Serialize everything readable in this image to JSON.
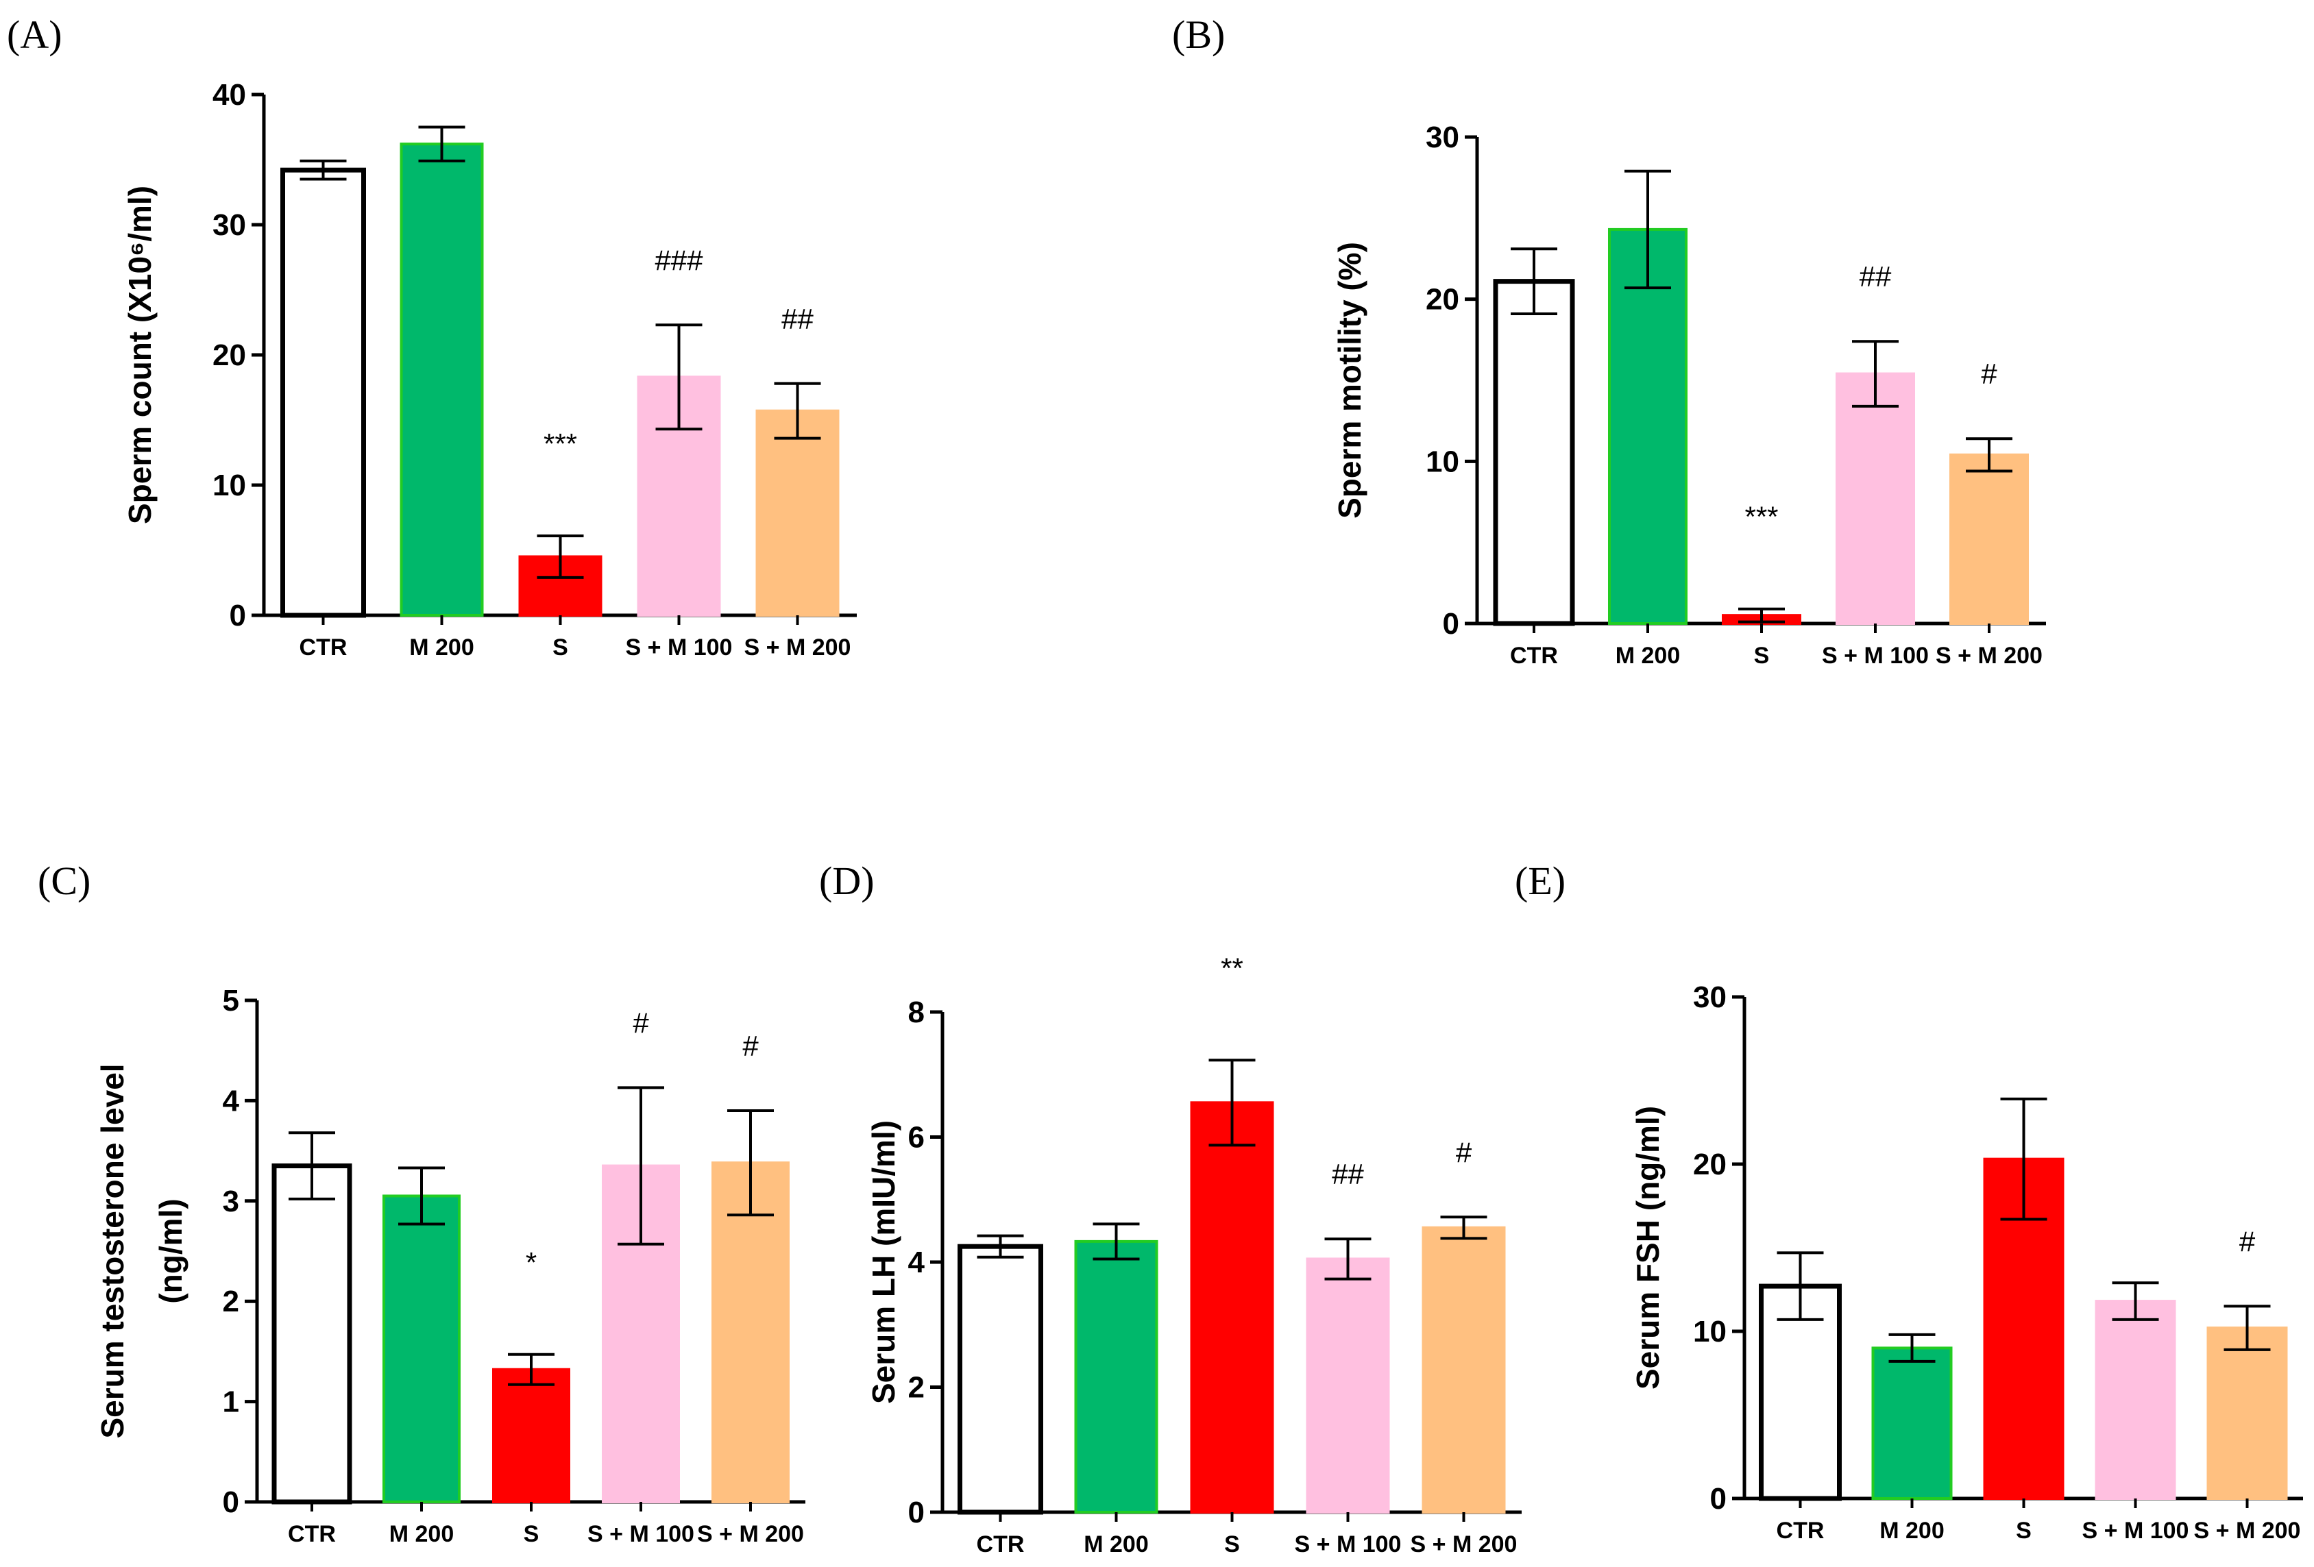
{
  "colors": {
    "CTR": "#ffffff",
    "M 200": "#00b86b",
    "S": "#ff0000",
    "S + M 100": "#ffc0e0",
    "S + M 200": "#ffc080"
  },
  "chart_data": [
    {
      "type": "bar",
      "panel": "(A)",
      "ylabel": "Sperm count (X10⁶/ml)",
      "ylim": [
        0,
        40
      ],
      "yticks": [
        "0",
        "10",
        "20",
        "30",
        "40"
      ],
      "categories": [
        "CTR",
        "M 200",
        "S",
        "S + M 100",
        "S + M 200"
      ],
      "values": [
        34.2,
        36.2,
        4.5,
        18.3,
        15.7
      ],
      "errors": [
        0.7,
        1.3,
        1.6,
        4.0,
        2.1
      ],
      "annotations": [
        "",
        "",
        "***",
        "###",
        "##"
      ]
    },
    {
      "type": "bar",
      "panel": "(B)",
      "ylabel": "Sperm motility (%)",
      "ylim": [
        0,
        30
      ],
      "yticks": [
        "0",
        "10",
        "20",
        "30"
      ],
      "categories": [
        "CTR",
        "M 200",
        "S",
        "S + M 100",
        "S + M 200"
      ],
      "values": [
        21.1,
        24.3,
        0.5,
        15.4,
        10.4
      ],
      "errors": [
        2.0,
        3.6,
        0.4,
        2.0,
        1.0
      ],
      "annotations": [
        "",
        "",
        "***",
        "##",
        "#"
      ]
    },
    {
      "type": "bar",
      "panel": "(C)",
      "ylabel": "Serum testosterone level (ng/ml)",
      "ylim": [
        0,
        5
      ],
      "yticks": [
        "0",
        "1",
        "2",
        "3",
        "4",
        "5"
      ],
      "categories": [
        "CTR",
        "M 200",
        "S",
        "S + M 100",
        "S + M 200"
      ],
      "values": [
        3.35,
        3.05,
        1.32,
        3.35,
        3.38
      ],
      "errors": [
        0.33,
        0.28,
        0.15,
        0.78,
        0.52
      ],
      "annotations": [
        "",
        "",
        "*",
        "#",
        "#"
      ]
    },
    {
      "type": "bar",
      "panel": "(D)",
      "ylabel": "Serum LH (mIU/ml)",
      "ylim": [
        0,
        8
      ],
      "yticks": [
        "0",
        "2",
        "4",
        "6",
        "8"
      ],
      "categories": [
        "CTR",
        "M 200",
        "S",
        "S + M 100",
        "S + M 200"
      ],
      "values": [
        4.25,
        4.33,
        6.55,
        4.05,
        4.55
      ],
      "errors": [
        0.17,
        0.28,
        0.68,
        0.32,
        0.17
      ],
      "annotations": [
        "",
        "",
        "**",
        "##",
        "#"
      ]
    },
    {
      "type": "bar",
      "panel": "(E)",
      "ylabel": "Serum FSH (ng/ml)",
      "ylim": [
        0,
        30
      ],
      "yticks": [
        "0",
        "10",
        "20",
        "30"
      ],
      "categories": [
        "CTR",
        "M 200",
        "S",
        "S + M 100",
        "S + M 200"
      ],
      "values": [
        12.7,
        9.0,
        20.3,
        11.8,
        10.2
      ],
      "errors": [
        2.0,
        0.8,
        3.6,
        1.1,
        1.3
      ],
      "annotations": [
        "",
        "",
        "",
        "",
        "#"
      ]
    }
  ]
}
